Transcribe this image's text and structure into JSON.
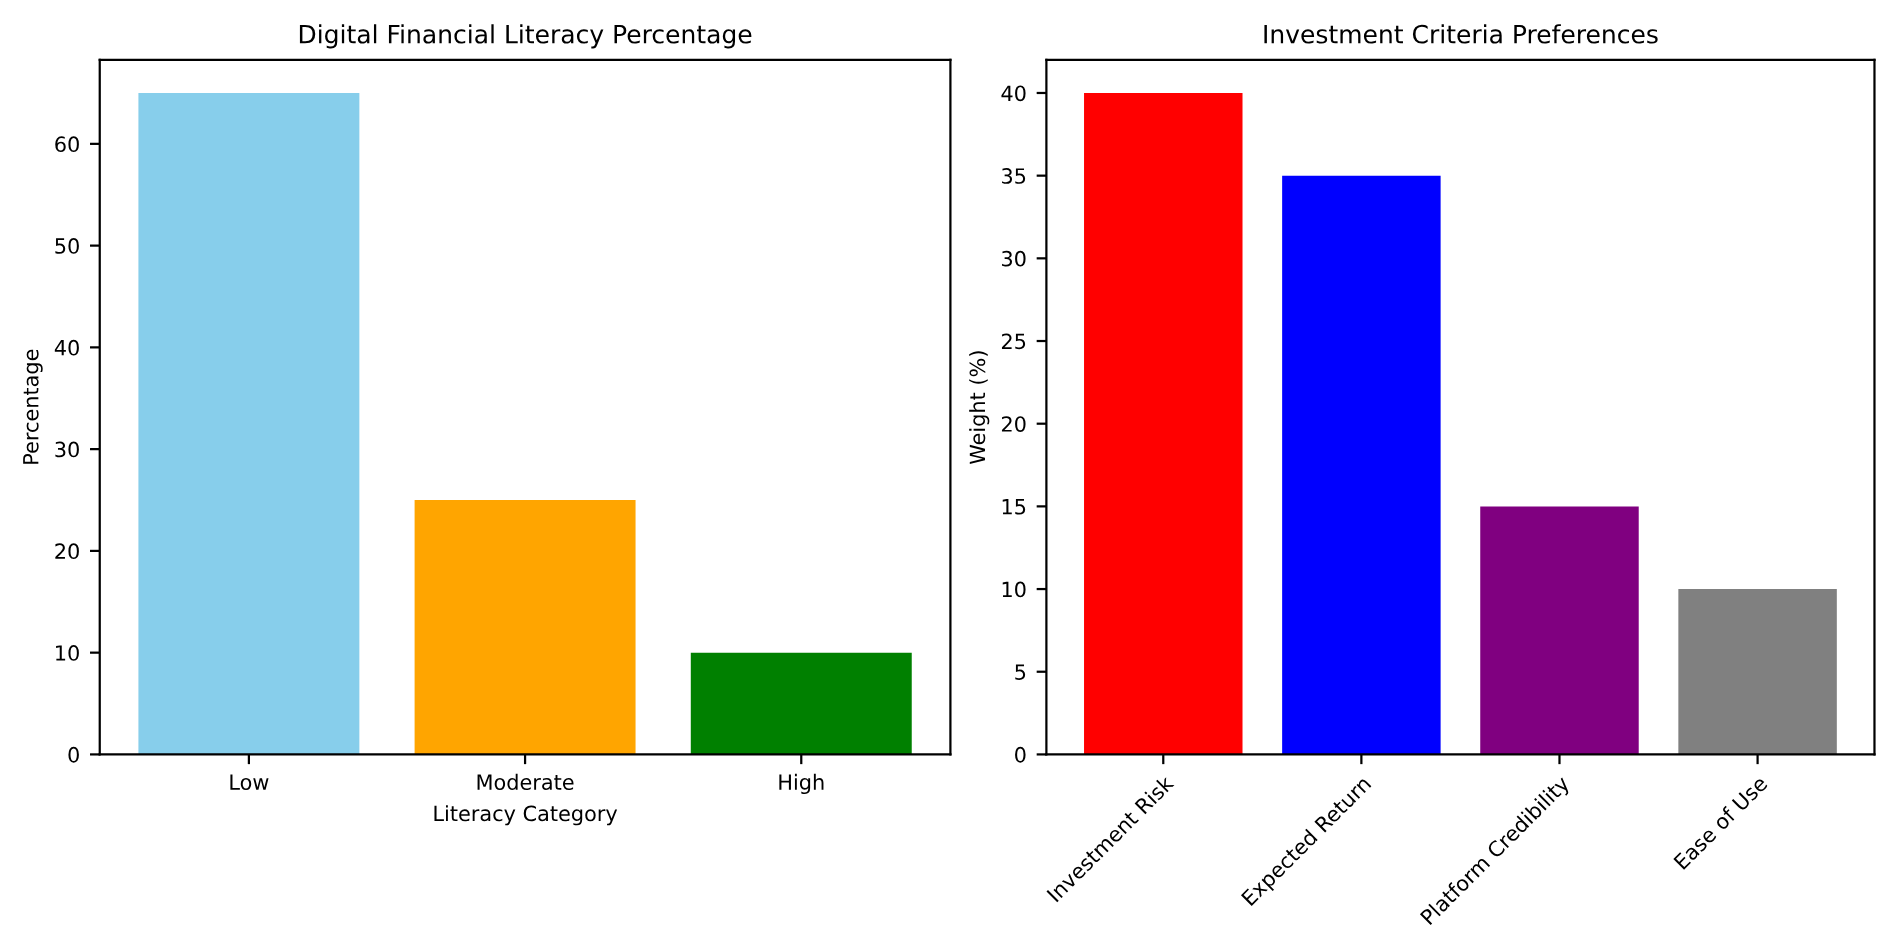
{
  "chart_data": [
    {
      "type": "bar",
      "title": "Digital Financial Literacy Percentage",
      "xlabel": "Literacy Category",
      "ylabel": "Percentage",
      "categories": [
        "Low",
        "Moderate",
        "High"
      ],
      "values": [
        65,
        25,
        10
      ],
      "colors": [
        "#87ceeb",
        "#ffa500",
        "#008000"
      ],
      "ylim": [
        0,
        68.25
      ],
      "yticks": [
        0,
        10,
        20,
        30,
        40,
        50,
        60
      ],
      "grid": false,
      "legend": false
    },
    {
      "type": "bar",
      "title": "Investment Criteria Preferences",
      "ylabel": "Weight (%)",
      "categories": [
        "Investment Risk",
        "Expected Return",
        "Platform Credibility",
        "Ease of Use"
      ],
      "values": [
        40,
        35,
        15,
        10
      ],
      "colors": [
        "#ff0000",
        "#0000ff",
        "#800080",
        "#808080"
      ],
      "ylim": [
        0,
        42
      ],
      "yticks": [
        0,
        5,
        10,
        15,
        20,
        25,
        30,
        35,
        40
      ],
      "grid": false,
      "legend": false
    }
  ]
}
